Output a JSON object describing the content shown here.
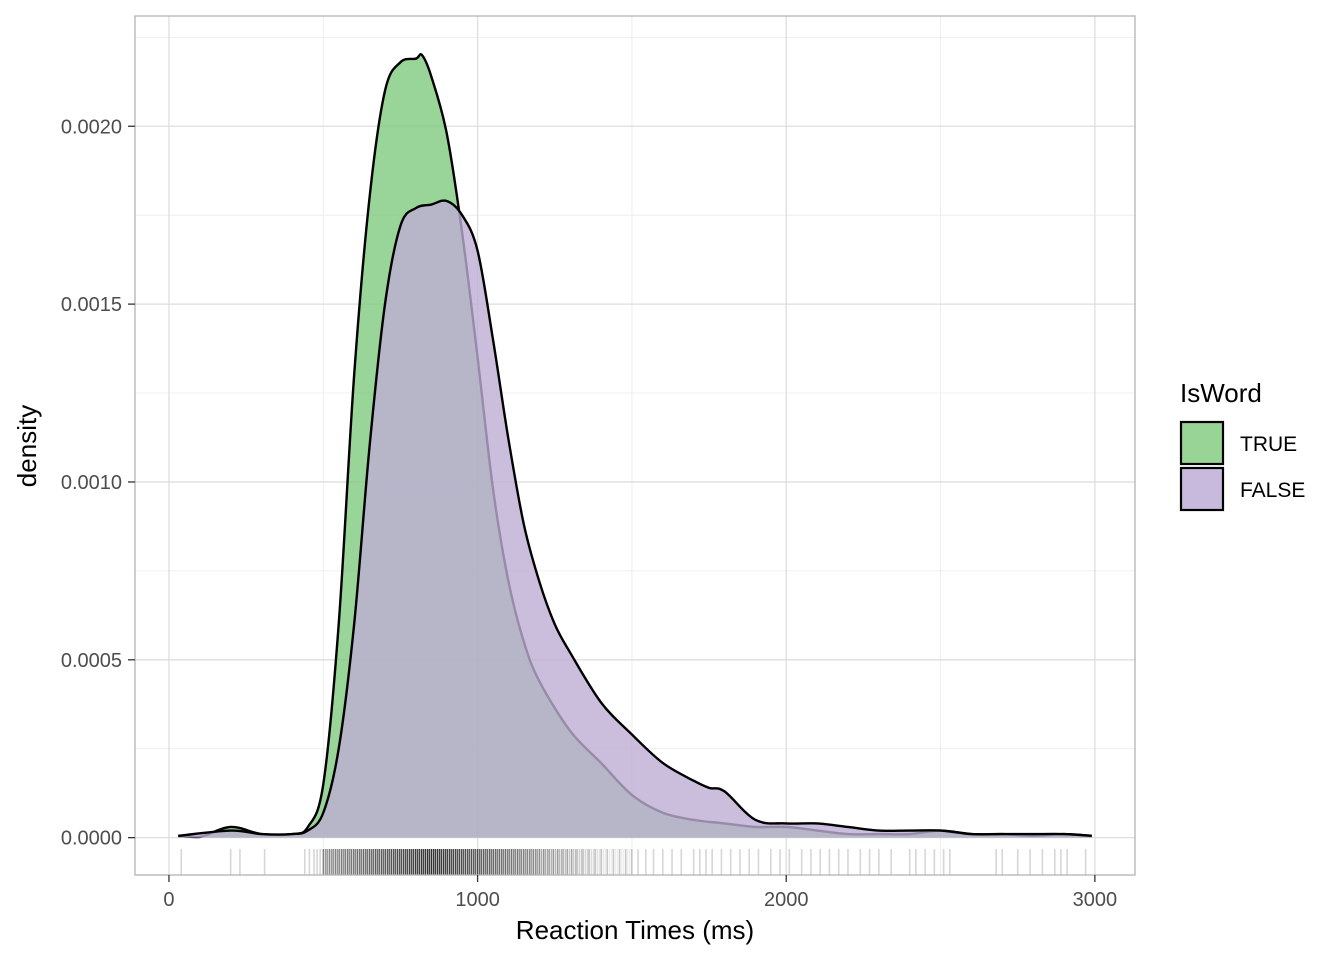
{
  "chart_data": {
    "type": "area",
    "subtype": "density",
    "title": "",
    "xlabel": "Reaction Times (ms)",
    "ylabel": "density",
    "xlim": [
      -110,
      3130
    ],
    "ylim": [
      -0.000105,
      0.00231
    ],
    "x_ticks": [
      0,
      1000,
      2000,
      3000
    ],
    "x_tick_labels": [
      "0",
      "1000",
      "2000",
      "3000"
    ],
    "y_ticks": [
      0,
      0.0005,
      0.001,
      0.0015,
      0.002
    ],
    "y_tick_labels": [
      "0.0000",
      "0.0005",
      "0.0010",
      "0.0015",
      "0.0020"
    ],
    "grid": true,
    "legend": {
      "title": "IsWord",
      "position": "right",
      "entries": [
        {
          "label": "TRUE",
          "color": "#98d495"
        },
        {
          "label": "FALSE",
          "color": "#c7badd"
        }
      ]
    },
    "series": [
      {
        "name": "TRUE",
        "color": "#7fc97f",
        "fill_opacity": 0.8,
        "x": [
          30,
          100,
          200,
          300,
          400,
          450,
          500,
          550,
          600,
          650,
          700,
          750,
          800,
          820,
          850,
          900,
          950,
          1000,
          1050,
          1100,
          1150,
          1200,
          1300,
          1400,
          1500,
          1600,
          1700,
          1800,
          1900,
          2000,
          2100,
          2200,
          2300,
          2400,
          2500,
          2600,
          2700,
          2800,
          2900,
          2990
        ],
        "y": [
          5e-06,
          2e-06,
          3e-05,
          1e-05,
          1e-05,
          3e-05,
          0.00015,
          0.0006,
          0.0013,
          0.0018,
          0.0021,
          0.00218,
          0.00219,
          0.0022,
          0.00214,
          0.00198,
          0.0017,
          0.00135,
          0.00098,
          0.00072,
          0.00055,
          0.00044,
          0.0003,
          0.00021,
          0.00012,
          7e-05,
          5e-05,
          4e-05,
          3e-05,
          3e-05,
          2e-05,
          1e-05,
          1e-05,
          1e-05,
          2e-05,
          1e-05,
          1e-05,
          5e-06,
          1e-05,
          5e-06
        ]
      },
      {
        "name": "FALSE",
        "color": "#beaed4",
        "fill_opacity": 0.8,
        "x": [
          30,
          200,
          300,
          400,
          450,
          500,
          550,
          600,
          650,
          700,
          750,
          800,
          850,
          900,
          950,
          1000,
          1050,
          1100,
          1150,
          1200,
          1250,
          1300,
          1400,
          1500,
          1600,
          1700,
          1750,
          1800,
          1900,
          2000,
          2100,
          2200,
          2300,
          2400,
          2500,
          2600,
          2700,
          2800,
          2900,
          2990
        ],
        "y": [
          5e-06,
          2e-05,
          1e-05,
          1e-05,
          2e-05,
          7e-05,
          0.00025,
          0.0006,
          0.0011,
          0.0015,
          0.00172,
          0.00177,
          0.00178,
          0.00179,
          0.00175,
          0.00165,
          0.0014,
          0.00112,
          0.00088,
          0.00072,
          0.0006,
          0.00052,
          0.00038,
          0.00029,
          0.00021,
          0.00016,
          0.00014,
          0.00013,
          5e-05,
          4e-05,
          4e-05,
          3e-05,
          2e-05,
          2e-05,
          2e-05,
          1e-05,
          1e-05,
          1e-05,
          1e-05,
          5e-06
        ]
      }
    ],
    "rug": {
      "color": "#000000",
      "opacity": 0.16,
      "values": [
        40,
        200,
        230,
        310,
        440,
        455,
        470,
        480,
        490,
        500,
        510,
        520,
        530,
        540,
        550,
        560,
        570,
        580,
        590,
        600,
        610,
        620,
        630,
        640,
        650,
        660,
        670,
        680,
        690,
        700,
        710,
        720,
        730,
        740,
        750,
        760,
        770,
        780,
        790,
        800,
        810,
        820,
        830,
        840,
        850,
        860,
        870,
        880,
        890,
        900,
        910,
        920,
        930,
        940,
        950,
        960,
        970,
        980,
        990,
        1000,
        1010,
        1020,
        1030,
        1040,
        1050,
        1060,
        1070,
        1080,
        1090,
        1100,
        1110,
        1120,
        1130,
        1140,
        1150,
        1160,
        1170,
        1180,
        1190,
        1200,
        1215,
        1230,
        1245,
        1260,
        1275,
        1290,
        1305,
        1320,
        1340,
        1360,
        1380,
        1400,
        1420,
        1440,
        1460,
        1480,
        1500,
        1520,
        1545,
        1570,
        1600,
        1630,
        1660,
        1700,
        1720,
        1740,
        1760,
        1790,
        1820,
        1850,
        1880,
        1910,
        1950,
        1980,
        2010,
        2050,
        2080,
        2110,
        2140,
        2170,
        2200,
        2240,
        2270,
        2300,
        2340,
        2400,
        2420,
        2450,
        2480,
        2510,
        2530,
        2680,
        2700,
        2750,
        2790,
        2830,
        2870,
        2890,
        2910,
        2970
      ]
    }
  }
}
